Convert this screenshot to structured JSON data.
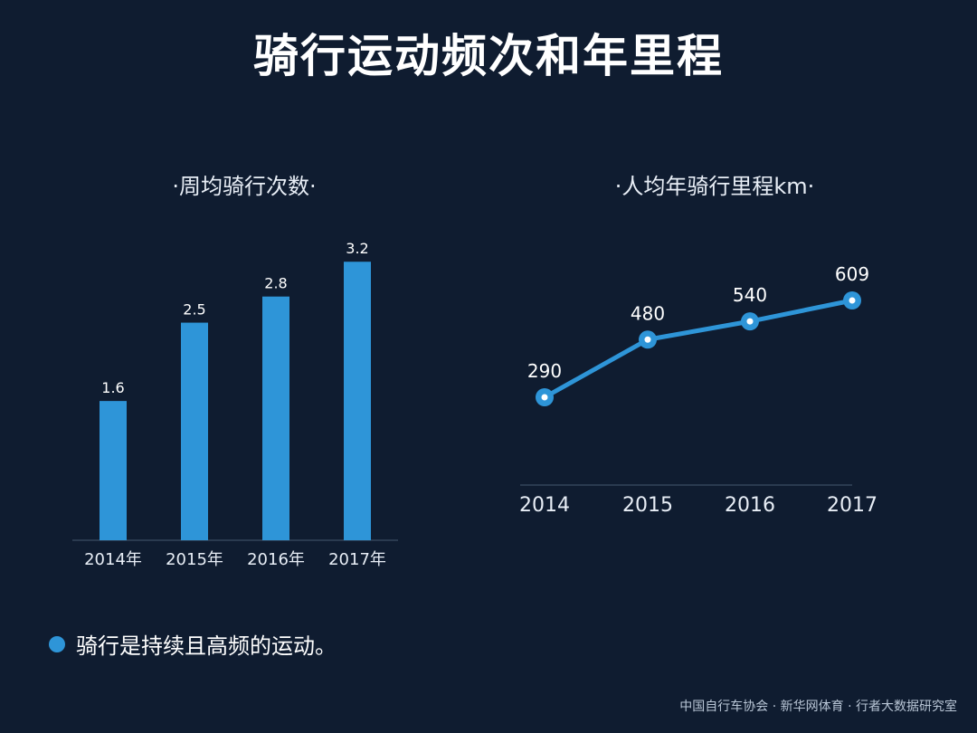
{
  "page_title": "骑行运动频次和年里程",
  "colors": {
    "background": "#0f1c30",
    "accent": "#2e95d8",
    "text": "#ffffff",
    "axis": "#2a3a4f"
  },
  "chart_data": [
    {
      "type": "bar",
      "title": "·周均骑行次数·",
      "categories": [
        "2014年",
        "2015年",
        "2016年",
        "2017年"
      ],
      "values": [
        1.6,
        2.5,
        2.8,
        3.2
      ],
      "value_labels": [
        "1.6",
        "2.5",
        "2.8",
        "3.2"
      ],
      "ylim": [
        0,
        3.4
      ],
      "xlabel": "",
      "ylabel": "",
      "grid": false
    },
    {
      "type": "line",
      "title": "·人均年骑行里程km·",
      "categories": [
        "2014",
        "2015",
        "2016",
        "2017"
      ],
      "values": [
        290,
        480,
        540,
        609
      ],
      "value_labels": [
        "290",
        "480",
        "540",
        "609"
      ],
      "ylim": [
        0,
        700
      ],
      "xlabel": "",
      "ylabel": "",
      "grid": false
    }
  ],
  "note": "骑行是持续且高频的运动。",
  "source": "中国自行车协会 · 新华网体育 · 行者大数据研究室"
}
